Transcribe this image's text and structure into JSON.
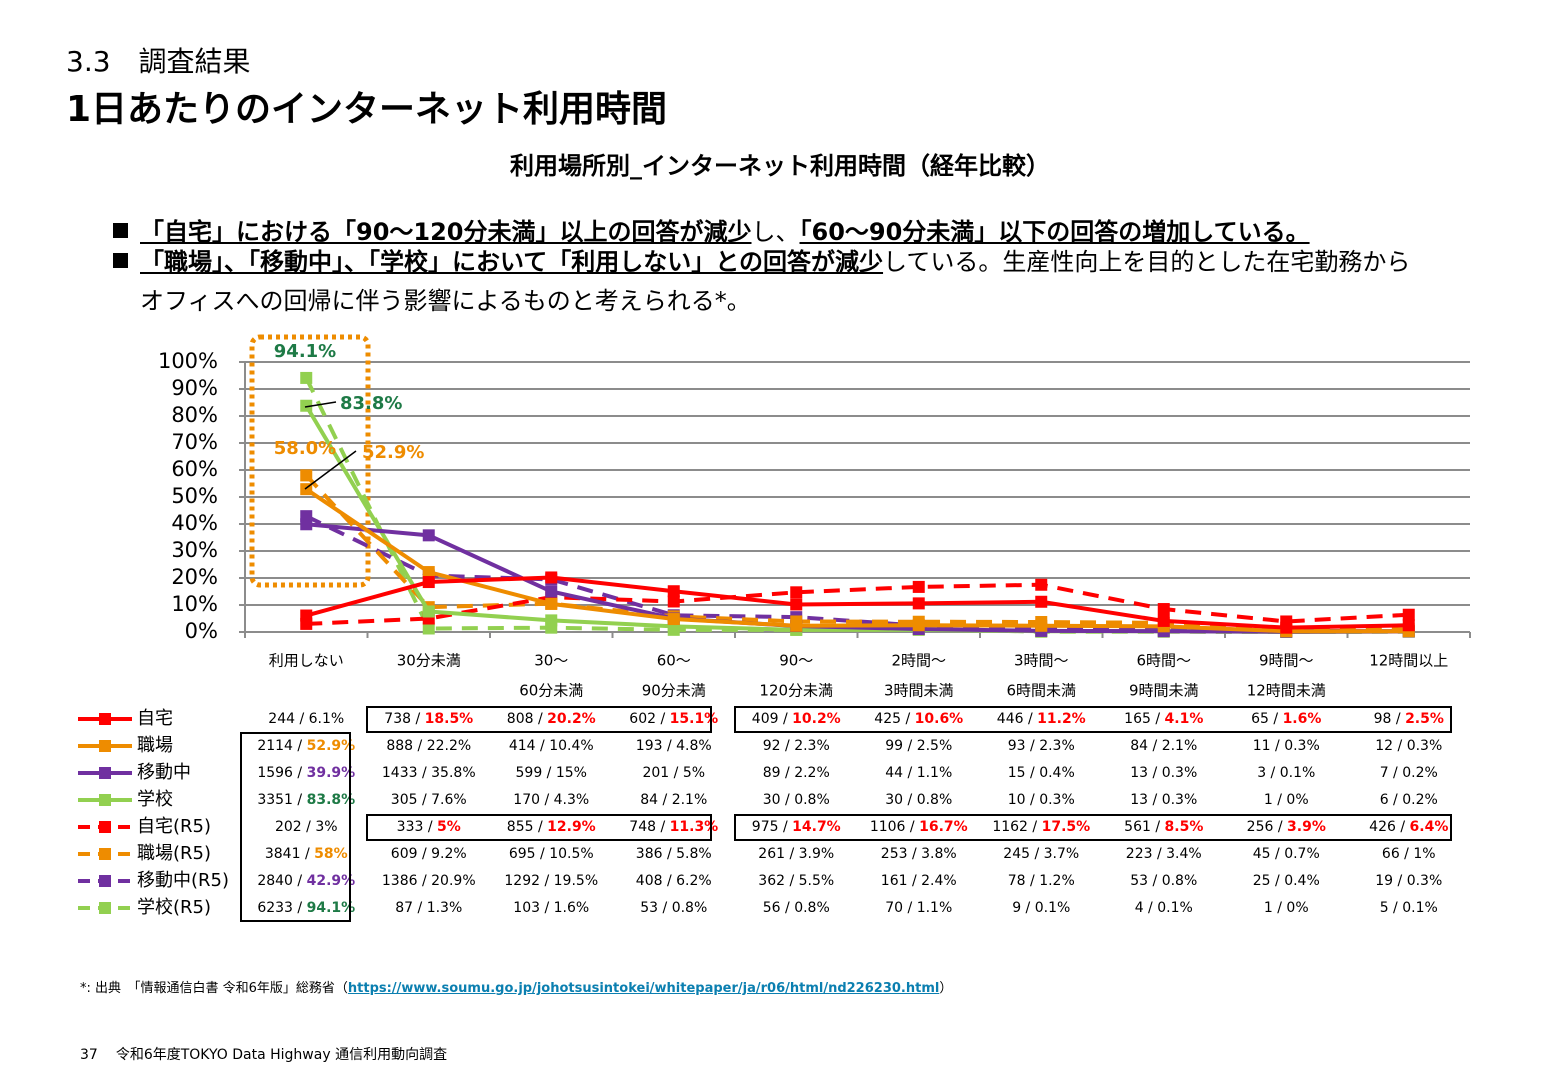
{
  "section": "3.3　調査結果",
  "title": "1日あたりのインターネット利用時間",
  "bullets": [
    [
      {
        "text": "「自宅」における「90～120分未満」以上の回答が減少",
        "bold": true
      },
      {
        "text": "し、",
        "bold": false
      },
      {
        "text": "「60～90分未満」以下の回答の増加している。",
        "bold": true
      }
    ],
    [
      {
        "text": "「職場」、「移動中」、「学校」において「利用しない」との回答が減少",
        "bold": true
      },
      {
        "text": "している。生産性向上を目的とした在宅勤務から",
        "bold": false
      },
      {
        "text": "オフィスへの回帰に伴う影響によるものと考えられる*。",
        "bold": false,
        "newline": true
      }
    ]
  ],
  "chart_data": {
    "type": "line",
    "title": "利用場所別_インターネット利用時間（経年比較）",
    "categories": [
      [
        "利用しない"
      ],
      [
        "30分未満"
      ],
      [
        "30～",
        "60分未満"
      ],
      [
        "60～",
        "90分未満"
      ],
      [
        "90～",
        "120分未満"
      ],
      [
        "2時間～",
        "3時間未満"
      ],
      [
        "3時間～",
        "6時間未満"
      ],
      [
        "6時間～",
        "9時間未満"
      ],
      [
        "9時間～",
        "12時間未満"
      ],
      [
        "12時間以上"
      ]
    ],
    "ylim": [
      0,
      100
    ],
    "yticks": [
      {
        "value": 0,
        "label": "0%"
      },
      {
        "value": 10,
        "label": "10%"
      },
      {
        "value": 20,
        "label": "20%"
      },
      {
        "value": 30,
        "label": "30%"
      },
      {
        "value": 40,
        "label": "40%"
      },
      {
        "value": 50,
        "label": "50%"
      },
      {
        "value": 60,
        "label": "60%"
      },
      {
        "value": 70,
        "label": "70%"
      },
      {
        "value": 80,
        "label": "80%"
      },
      {
        "value": 90,
        "label": "90%"
      },
      {
        "value": 100,
        "label": "100%"
      }
    ],
    "grid": true,
    "series": [
      {
        "name": "自宅",
        "color": "#ff0000",
        "dashed": false,
        "values": [
          6.1,
          18.5,
          20.2,
          15.1,
          10.2,
          10.6,
          11.2,
          4.1,
          1.6,
          2.5
        ]
      },
      {
        "name": "職場",
        "color": "#ee8c00",
        "dashed": false,
        "values": [
          52.9,
          22.2,
          10.4,
          4.8,
          2.3,
          2.5,
          2.3,
          2.1,
          0.3,
          0.3
        ]
      },
      {
        "name": "移動中",
        "color": "#7030a0",
        "dashed": false,
        "values": [
          39.9,
          35.8,
          15,
          5,
          2.2,
          1.1,
          0.4,
          0.3,
          0.1,
          0.2
        ]
      },
      {
        "name": "学校",
        "color": "#92d050",
        "dashed": false,
        "values": [
          83.8,
          7.6,
          4.3,
          2.1,
          0.8,
          0.8,
          0.3,
          0.3,
          0,
          0.2
        ]
      },
      {
        "name": "自宅(R5)",
        "color": "#ff0000",
        "dashed": true,
        "values": [
          3,
          5,
          12.9,
          11.3,
          14.7,
          16.7,
          17.5,
          8.5,
          3.9,
          6.4
        ]
      },
      {
        "name": "職場(R5)",
        "color": "#ee8c00",
        "dashed": true,
        "values": [
          58,
          9.2,
          10.5,
          5.8,
          3.9,
          3.8,
          3.7,
          3.4,
          0.7,
          1
        ]
      },
      {
        "name": "移動中(R5)",
        "color": "#7030a0",
        "dashed": true,
        "values": [
          42.9,
          20.9,
          19.5,
          6.2,
          5.5,
          2.4,
          1.2,
          0.8,
          0.4,
          0.3
        ]
      },
      {
        "name": "学校(R5)",
        "color": "#92d050",
        "dashed": true,
        "values": [
          94.1,
          1.3,
          1.6,
          0.8,
          0.8,
          1.1,
          0.1,
          0.1,
          0,
          0.1
        ]
      }
    ],
    "annotations": [
      {
        "text": "94.1%",
        "color": "#1e7a46"
      },
      {
        "text": "83.8%",
        "color": "#1e7a46"
      },
      {
        "text": "58.0%",
        "color": "#ee8c00"
      },
      {
        "text": "52.9%",
        "color": "#ee8c00"
      }
    ]
  },
  "table": {
    "highlight_color": "#ff0000",
    "rows": [
      [
        "244 / 6.1%",
        "738 / 18.5%",
        "808 / 20.2%",
        "602 / 15.1%",
        "409 / 10.2%",
        "425 / 10.6%",
        "446 / 11.2%",
        "165 / 4.1%",
        "65 / 1.6%",
        "98 / 2.5%"
      ],
      [
        "2114 / 52.9%",
        "888 / 22.2%",
        "414 / 10.4%",
        "193 / 4.8%",
        "92 / 2.3%",
        "99 / 2.5%",
        "93 / 2.3%",
        "84 / 2.1%",
        "11 / 0.3%",
        "12 / 0.3%"
      ],
      [
        "1596 / 39.9%",
        "1433 / 35.8%",
        "599 / 15%",
        "201 / 5%",
        "89 / 2.2%",
        "44 / 1.1%",
        "15 / 0.4%",
        "13 / 0.3%",
        "3 / 0.1%",
        "7 / 0.2%"
      ],
      [
        "3351 / 83.8%",
        "305 / 7.6%",
        "170 / 4.3%",
        "84 / 2.1%",
        "30 / 0.8%",
        "30 / 0.8%",
        "10 / 0.3%",
        "13 / 0.3%",
        "1 / 0%",
        "6 / 0.2%"
      ],
      [
        "202 / 3%",
        "333 / 5%",
        "855 / 12.9%",
        "748 / 11.3%",
        "975 / 14.7%",
        "1106 / 16.7%",
        "1162 / 17.5%",
        "561 / 8.5%",
        "256 / 3.9%",
        "426 / 6.4%"
      ],
      [
        "3841 / 58%",
        "609 / 9.2%",
        "695 / 10.5%",
        "386 / 5.8%",
        "261 / 3.9%",
        "253 / 3.8%",
        "245 / 3.7%",
        "223 / 3.4%",
        "45 / 0.7%",
        "66 / 1%"
      ],
      [
        "2840 / 42.9%",
        "1386 / 20.9%",
        "1292 / 19.5%",
        "408 / 6.2%",
        "362 / 5.5%",
        "161 / 2.4%",
        "78 / 1.2%",
        "53 / 0.8%",
        "25 / 0.4%",
        "19 / 0.3%"
      ],
      [
        "6233 / 94.1%",
        "87 / 1.3%",
        "103 / 1.6%",
        "53 / 0.8%",
        "56 / 0.8%",
        "70 / 1.1%",
        "9 / 0.1%",
        "4 / 0.1%",
        "1 / 0%",
        "5 / 0.1%"
      ]
    ]
  },
  "footnote": {
    "prefix": "*: 出典　「情報通信白書 令和6年版」総務省（",
    "url": "https://www.soumu.go.jp/johotsusintokei/whitepaper/ja/r06/html/nd226230.html",
    "suffix": "）"
  },
  "footer": {
    "page": "37",
    "text": "令和6年度TOKYO Data Highway 通信利用動向調査"
  }
}
